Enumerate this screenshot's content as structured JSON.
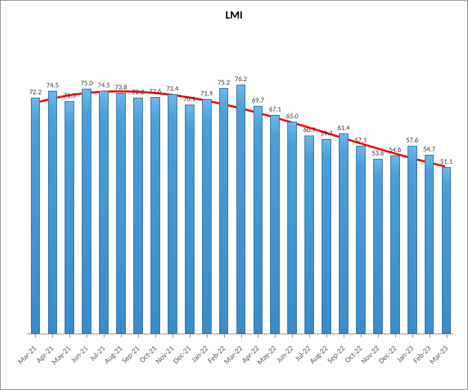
{
  "chart": {
    "type": "bar",
    "title": "LMI",
    "title_fontsize": 16,
    "title_fontweight": "bold",
    "categories": [
      "Mar-21",
      "Apr-21",
      "May-21",
      "Jun-21",
      "Jul-21",
      "Aug-21",
      "Sep-21",
      "Oct-21",
      "Nov-21",
      "Dec-21",
      "Jan-22",
      "Feb-22",
      "Mar-22",
      "Apr-22",
      "May-22",
      "Jun-22",
      "Jul-22",
      "Aug-22",
      "Sep-22",
      "Oct-22",
      "Nov-22",
      "Dec-22",
      "Jan-23",
      "Feb-23",
      "Mar-23"
    ],
    "values": [
      72.2,
      74.5,
      71.3,
      75.0,
      74.5,
      73.8,
      72.2,
      72.6,
      73.4,
      70.1,
      71.9,
      75.2,
      76.2,
      69.7,
      67.1,
      65.0,
      60.7,
      59.7,
      61.4,
      57.5,
      53.6,
      54.6,
      57.6,
      54.7,
      51.1
    ],
    "bar_fill_top": "#6db8e8",
    "bar_fill_bottom": "#3b8cc9",
    "bar_border": "#2e6da4",
    "bar_width_ratio": 0.55,
    "data_label_fontsize": 10,
    "data_label_color": "#333333",
    "x_label_fontsize": 11,
    "x_label_rotation": -45,
    "x_label_color": "#595959",
    "axis_color": "#868686",
    "ylim": [
      0,
      90
    ],
    "background_color": "#ffffff",
    "trendline": {
      "color": "#ff0000",
      "width": 3,
      "type": "polynomial"
    }
  }
}
